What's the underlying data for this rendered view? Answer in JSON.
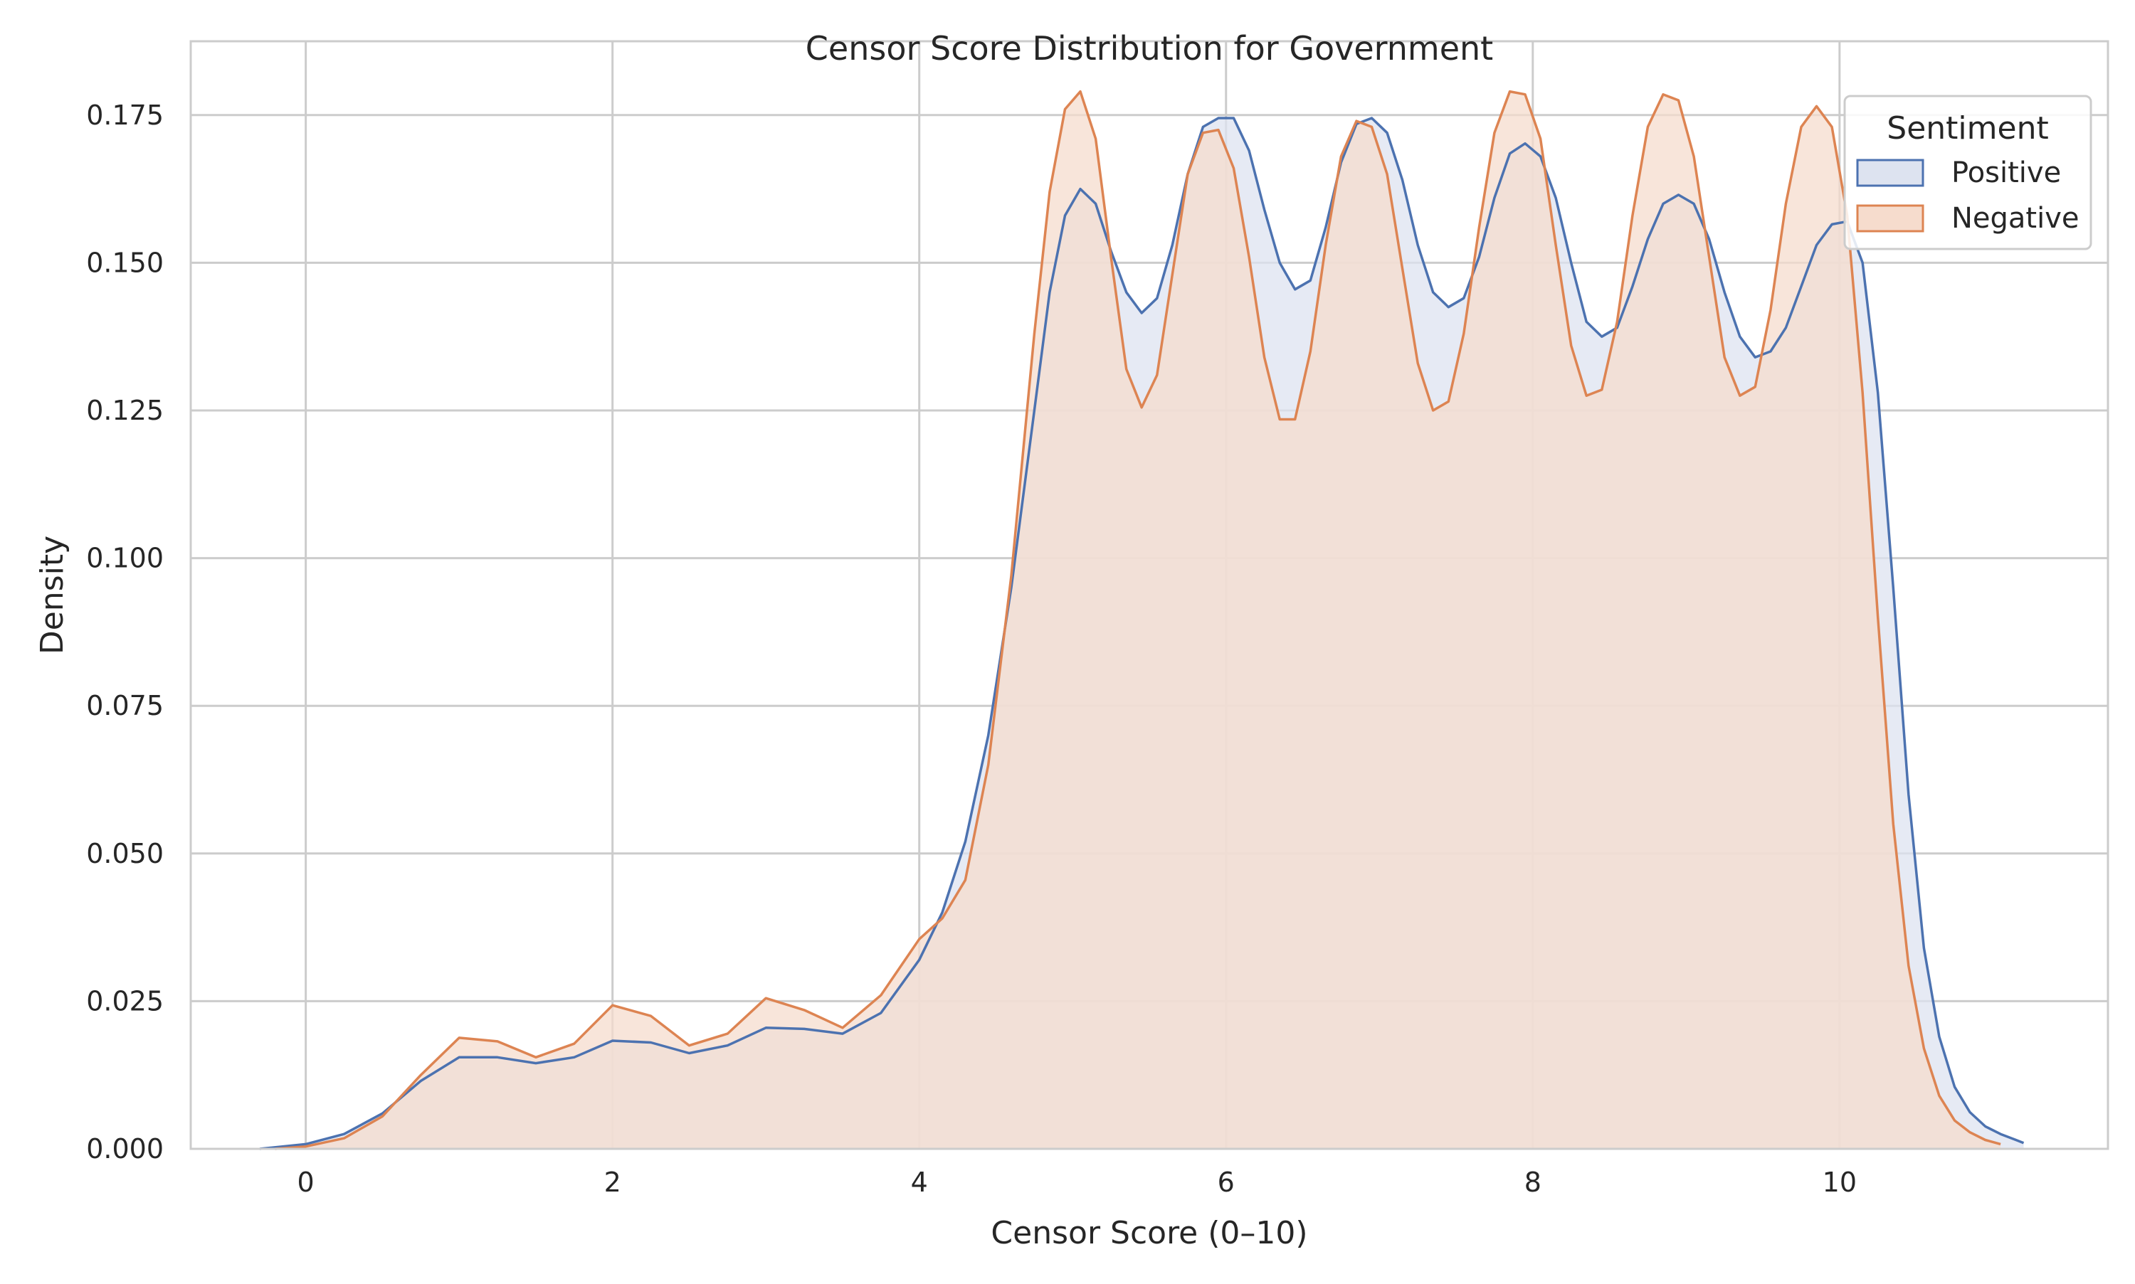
{
  "chart_data": {
    "type": "area",
    "title": "Censor Score Distribution for Government",
    "xlabel": "Censor Score (0–10)",
    "ylabel": "Density",
    "xlim": [
      -0.75,
      11.75
    ],
    "ylim": [
      0,
      0.1875
    ],
    "xticks": [
      0,
      2,
      4,
      6,
      8,
      10
    ],
    "xtick_labels": [
      "0",
      "2",
      "4",
      "6",
      "8",
      "10"
    ],
    "yticks": [
      0,
      0.025,
      0.05,
      0.075,
      0.1,
      0.125,
      0.15,
      0.175
    ],
    "ytick_labels": [
      "0.000",
      "0.025",
      "0.050",
      "0.075",
      "0.100",
      "0.125",
      "0.150",
      "0.175"
    ],
    "grid": true,
    "legend": {
      "title": "Sentiment",
      "position": "top-right"
    },
    "series": [
      {
        "name": "Positive",
        "color": "#4c72b0",
        "fill": "#dde3f0",
        "x": [
          -0.3,
          0.0,
          0.25,
          0.5,
          0.75,
          1.0,
          1.25,
          1.5,
          1.75,
          2.0,
          2.25,
          2.5,
          2.75,
          3.0,
          3.25,
          3.5,
          3.75,
          4.0,
          4.15,
          4.3,
          4.45,
          4.6,
          4.75,
          4.85,
          4.95,
          5.05,
          5.15,
          5.25,
          5.35,
          5.45,
          5.55,
          5.65,
          5.75,
          5.85,
          5.95,
          6.05,
          6.15,
          6.25,
          6.35,
          6.45,
          6.55,
          6.65,
          6.75,
          6.85,
          6.95,
          7.05,
          7.15,
          7.25,
          7.35,
          7.45,
          7.55,
          7.65,
          7.75,
          7.85,
          7.95,
          8.05,
          8.15,
          8.25,
          8.35,
          8.45,
          8.55,
          8.65,
          8.75,
          8.85,
          8.95,
          9.05,
          9.15,
          9.25,
          9.35,
          9.45,
          9.55,
          9.65,
          9.75,
          9.85,
          9.95,
          10.05,
          10.15,
          10.25,
          10.35,
          10.45,
          10.55,
          10.65,
          10.75,
          10.85,
          10.95,
          11.05,
          11.15,
          11.2
        ],
        "y": [
          0.0,
          0.0008,
          0.0025,
          0.006,
          0.0115,
          0.0155,
          0.0155,
          0.0145,
          0.0155,
          0.0183,
          0.018,
          0.0162,
          0.0175,
          0.0205,
          0.0203,
          0.0195,
          0.023,
          0.032,
          0.04,
          0.052,
          0.07,
          0.095,
          0.125,
          0.145,
          0.158,
          0.1625,
          0.16,
          0.152,
          0.145,
          0.1415,
          0.144,
          0.153,
          0.165,
          0.173,
          0.1745,
          0.1745,
          0.169,
          0.159,
          0.15,
          0.1455,
          0.147,
          0.156,
          0.167,
          0.1735,
          0.1745,
          0.172,
          0.164,
          0.153,
          0.145,
          0.1425,
          0.144,
          0.151,
          0.161,
          0.1685,
          0.1702,
          0.168,
          0.161,
          0.15,
          0.14,
          0.1375,
          0.139,
          0.146,
          0.154,
          0.16,
          0.1615,
          0.16,
          0.154,
          0.145,
          0.1375,
          0.134,
          0.135,
          0.139,
          0.146,
          0.153,
          0.1565,
          0.157,
          0.15,
          0.128,
          0.095,
          0.06,
          0.034,
          0.019,
          0.0105,
          0.0062,
          0.0038,
          0.0025,
          0.0015,
          0.001
        ]
      },
      {
        "name": "Negative",
        "color": "#dd8452",
        "fill": "#f6dccd",
        "x": [
          -0.2,
          0.0,
          0.25,
          0.5,
          0.75,
          1.0,
          1.25,
          1.5,
          1.75,
          2.0,
          2.25,
          2.5,
          2.75,
          3.0,
          3.25,
          3.5,
          3.75,
          4.0,
          4.15,
          4.3,
          4.45,
          4.6,
          4.75,
          4.85,
          4.95,
          5.05,
          5.15,
          5.25,
          5.35,
          5.45,
          5.55,
          5.65,
          5.75,
          5.85,
          5.95,
          6.05,
          6.15,
          6.25,
          6.35,
          6.45,
          6.55,
          6.65,
          6.75,
          6.85,
          6.95,
          7.05,
          7.15,
          7.25,
          7.35,
          7.45,
          7.55,
          7.65,
          7.75,
          7.85,
          7.95,
          8.05,
          8.15,
          8.25,
          8.35,
          8.45,
          8.55,
          8.65,
          8.75,
          8.85,
          8.95,
          9.05,
          9.15,
          9.25,
          9.35,
          9.45,
          9.55,
          9.65,
          9.75,
          9.85,
          9.95,
          10.05,
          10.15,
          10.25,
          10.35,
          10.45,
          10.55,
          10.65,
          10.75,
          10.85,
          10.95,
          11.05
        ],
        "y": [
          0.0,
          0.0004,
          0.0018,
          0.0055,
          0.0125,
          0.0188,
          0.0182,
          0.0155,
          0.0178,
          0.0243,
          0.0225,
          0.0175,
          0.0195,
          0.0255,
          0.0235,
          0.0205,
          0.026,
          0.0355,
          0.039,
          0.0455,
          0.065,
          0.097,
          0.138,
          0.162,
          0.176,
          0.179,
          0.171,
          0.151,
          0.132,
          0.1255,
          0.131,
          0.148,
          0.165,
          0.172,
          0.1725,
          0.166,
          0.151,
          0.134,
          0.1235,
          0.1235,
          0.135,
          0.153,
          0.168,
          0.174,
          0.173,
          0.165,
          0.149,
          0.133,
          0.125,
          0.1265,
          0.138,
          0.156,
          0.172,
          0.179,
          0.1785,
          0.171,
          0.153,
          0.136,
          0.1275,
          0.1285,
          0.14,
          0.158,
          0.173,
          0.1785,
          0.1775,
          0.168,
          0.151,
          0.134,
          0.1275,
          0.129,
          0.142,
          0.16,
          0.173,
          0.1765,
          0.173,
          0.158,
          0.128,
          0.09,
          0.055,
          0.031,
          0.017,
          0.009,
          0.0048,
          0.0028,
          0.0015,
          0.0008
        ]
      }
    ]
  }
}
